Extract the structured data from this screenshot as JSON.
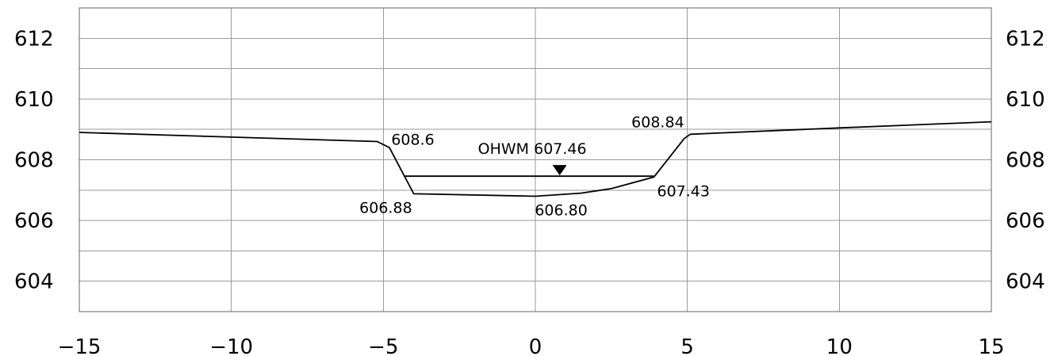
{
  "chart_data": {
    "type": "line",
    "title": "",
    "xlabel": "",
    "ylabel": "",
    "xlim": [
      -15,
      15
    ],
    "ylim": [
      603,
      613
    ],
    "grid": true,
    "x_ticks": [
      -15,
      -10,
      -5,
      0,
      5,
      10,
      15
    ],
    "x_tick_labels": [
      "−15",
      "−10",
      "−5",
      "0",
      "5",
      "10",
      "15"
    ],
    "y_ticks": [
      604,
      606,
      608,
      610,
      612
    ],
    "y_tick_labels": [
      "604",
      "606",
      "608",
      "610",
      "612"
    ],
    "y_gridlines": [
      603,
      604,
      605,
      606,
      607,
      608,
      609,
      610,
      611,
      612,
      613
    ],
    "y_axis_labels_both_sides": true,
    "series": [
      {
        "x": [
          -15,
          -5.2,
          -4.8,
          -4.0,
          0,
          1.5,
          2.5,
          3.9,
          4.9,
          5.1,
          10,
          15
        ],
        "y": [
          608.9,
          608.6,
          608.4,
          606.88,
          606.8,
          606.9,
          607.05,
          607.43,
          608.7,
          608.84,
          609.05,
          609.25
        ]
      }
    ],
    "water_surface": {
      "x_start": -4.3,
      "x_end": 3.9,
      "elevation": 607.46,
      "marker_x": 0.8
    },
    "annotations": [
      {
        "text": "608.6",
        "x": -5.0,
        "y": 608.6
      },
      {
        "text": "606.88",
        "x": -4.0,
        "y": 606.88
      },
      {
        "text": "606.80",
        "x": 0.4,
        "y": 606.8
      },
      {
        "text": "607.43",
        "x": 3.9,
        "y": 607.43
      },
      {
        "text": "608.84",
        "x": 5.0,
        "y": 608.84
      },
      {
        "text": "OHWM 607.46",
        "x": 0.8,
        "y": 607.46
      }
    ]
  }
}
